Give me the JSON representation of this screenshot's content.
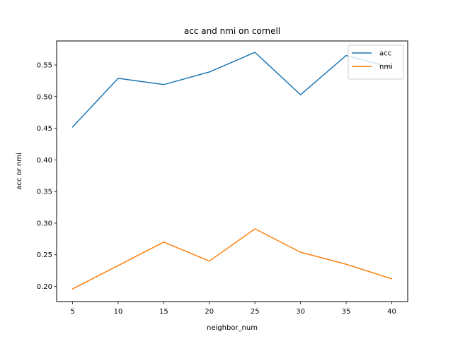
{
  "chart_data": {
    "type": "line",
    "title": "acc and nmi on cornell",
    "xlabel": "neighbor_num",
    "ylabel": "acc or nmi",
    "x": [
      5,
      10,
      15,
      20,
      25,
      30,
      35,
      40
    ],
    "xticks": [
      "5",
      "10",
      "15",
      "20",
      "25",
      "30",
      "35",
      "40"
    ],
    "yticks": [
      "0.20",
      "0.25",
      "0.30",
      "0.35",
      "0.40",
      "0.45",
      "0.50",
      "0.55"
    ],
    "xlim": [
      3.25,
      41.75
    ],
    "ylim": [
      0.176,
      0.588
    ],
    "grid": false,
    "legend_position": "top-right",
    "series": [
      {
        "name": "acc",
        "color": "#1f77b4",
        "values": [
          0.452,
          0.529,
          0.519,
          0.539,
          0.57,
          0.503,
          0.565,
          0.546
        ]
      },
      {
        "name": "nmi",
        "color": "#ff7f0e",
        "values": [
          0.196,
          0.233,
          0.27,
          0.24,
          0.291,
          0.254,
          0.235,
          0.212
        ]
      }
    ]
  }
}
